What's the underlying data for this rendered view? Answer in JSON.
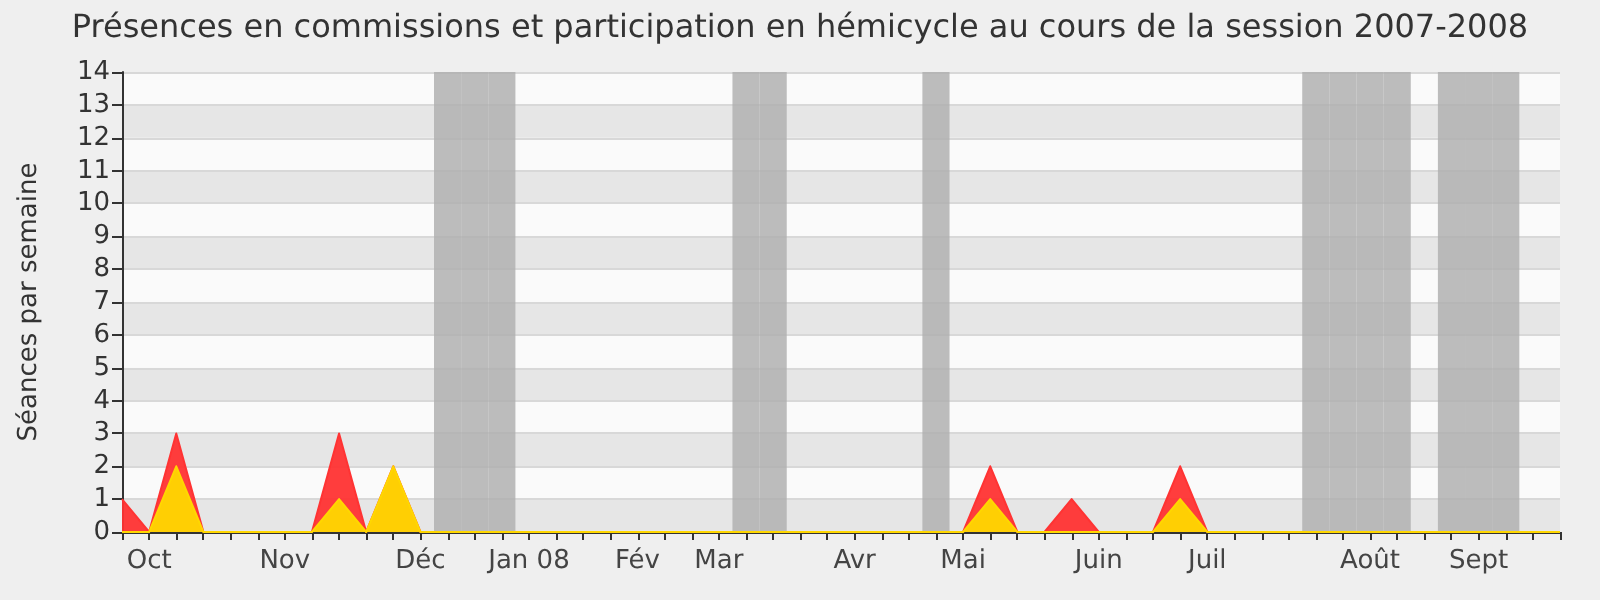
{
  "chart_data": {
    "type": "area",
    "title": "Présences en commissions et participation en hémicycle au cours de la session 2007-2008",
    "ylabel": "Séances par semaine",
    "categories": [
      null,
      "Oct",
      null,
      null,
      null,
      null,
      "Nov",
      null,
      null,
      null,
      null,
      "Déc",
      null,
      null,
      null,
      "Jan 08",
      null,
      null,
      null,
      "Fév",
      null,
      null,
      "Mar",
      null,
      null,
      null,
      null,
      "Avr",
      null,
      null,
      null,
      "Mai",
      null,
      null,
      null,
      null,
      "Juin",
      null,
      null,
      null,
      "Juil",
      null,
      null,
      null,
      null,
      null,
      "Août",
      null,
      null,
      null,
      "Sept",
      null,
      null,
      null
    ],
    "series": [
      {
        "type": "bar",
        "color": "#b0b0b0",
        "values": [
          null,
          null,
          null,
          null,
          null,
          null,
          null,
          null,
          null,
          null,
          null,
          null,
          14,
          14,
          14,
          null,
          null,
          null,
          null,
          null,
          null,
          null,
          null,
          14,
          14,
          null,
          null,
          null,
          null,
          null,
          14,
          null,
          null,
          null,
          null,
          null,
          null,
          null,
          null,
          null,
          null,
          null,
          null,
          null,
          14,
          14,
          14,
          14,
          null,
          14,
          14,
          14,
          null,
          null
        ]
      },
      {
        "color": "#ff3333",
        "values": [
          1,
          0,
          3,
          0,
          0,
          0,
          0,
          0,
          3,
          0,
          2,
          0,
          0,
          0,
          0,
          0,
          0,
          0,
          0,
          0,
          0,
          0,
          0,
          0,
          0,
          0,
          0,
          0,
          0,
          0,
          0,
          0,
          2,
          0,
          0,
          1,
          0,
          0,
          0,
          2,
          0,
          0,
          0,
          0,
          0,
          0,
          0,
          0,
          0,
          0,
          0,
          0,
          0,
          0
        ]
      },
      {
        "color": "#ffd700",
        "values": [
          0,
          0,
          2,
          0,
          0,
          0,
          0,
          0,
          1,
          0,
          2,
          0,
          0,
          0,
          0,
          0,
          0,
          0,
          0,
          0,
          0,
          0,
          0,
          0,
          0,
          0,
          0,
          0,
          0,
          0,
          0,
          0,
          1,
          0,
          0,
          0,
          0,
          0,
          0,
          1,
          0,
          0,
          0,
          0,
          0,
          0,
          0,
          0,
          0,
          0,
          0,
          0,
          0,
          0
        ]
      }
    ],
    "ylim": [
      0,
      14
    ],
    "yticks": [
      0,
      1,
      2,
      3,
      4,
      5,
      6,
      7,
      8,
      9,
      10,
      11,
      12,
      13,
      14
    ],
    "grid": "y"
  }
}
